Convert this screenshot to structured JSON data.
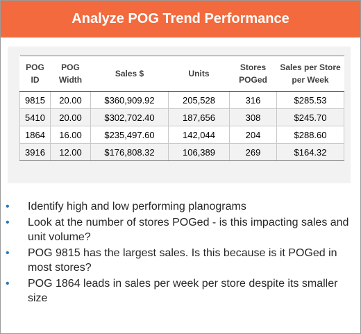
{
  "header": {
    "title": "Analyze POG Trend Performance"
  },
  "table": {
    "columns": [
      [
        "POG",
        "ID"
      ],
      [
        "POG",
        "Width"
      ],
      [
        "Sales $"
      ],
      [
        "Units"
      ],
      [
        "Stores",
        "POGed"
      ],
      [
        "Sales per Store",
        "per Week"
      ]
    ],
    "rows": [
      [
        "9815",
        "20.00",
        "$360,909.92",
        "205,528",
        "316",
        "$285.53"
      ],
      [
        "5410",
        "20.00",
        "$302,702.40",
        "187,656",
        "308",
        "$245.70"
      ],
      [
        "1864",
        "16.00",
        "$235,497.60",
        "142,044",
        "204",
        "$288.60"
      ],
      [
        "3916",
        "12.00",
        "$176,808.32",
        "106,389",
        "269",
        "$164.32"
      ]
    ]
  },
  "bullets": [
    "Identify high and low performing planograms",
    "Look at the number of stores POGed - is this impacting sales and unit volume?",
    "POG 9815 has the largest sales. Is this because is it POGed in most stores?",
    "POG 1864 leads in sales per week per store despite its smaller size"
  ],
  "colors": {
    "header_bg": "#f26a3d",
    "bullet": "#2e75b6",
    "panel_bg": "#f2f2f2"
  }
}
